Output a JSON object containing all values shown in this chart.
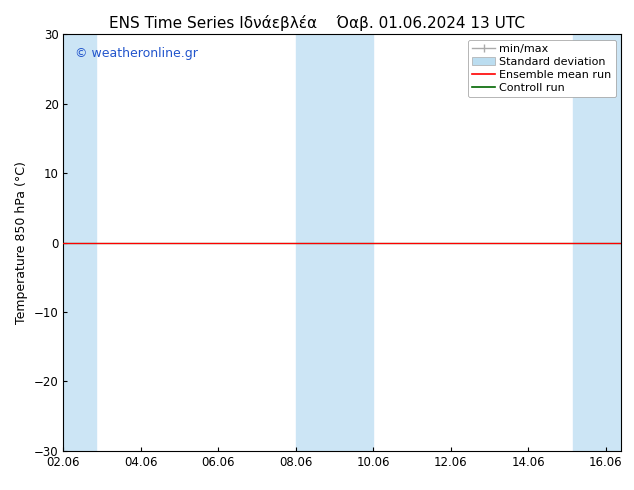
{
  "title_left": "ENS Time Series Ιδνάεβλέα",
  "title_right": "Όαβ. 01.06.2024 13 UTC",
  "ylabel": "Temperature 850 hPa (°C)",
  "watermark": "© weatheronline.gr",
  "watermark_color": "#2255cc",
  "ylim": [
    -30,
    30
  ],
  "yticks": [
    -30,
    -20,
    -10,
    0,
    10,
    20,
    30
  ],
  "xlim_start": 0,
  "xlim_end": 14.4,
  "xtick_labels": [
    "02.06",
    "04.06",
    "06.06",
    "08.06",
    "10.06",
    "12.06",
    "14.06",
    "16.06"
  ],
  "xtick_positions": [
    0,
    2,
    4,
    6,
    8,
    10,
    12,
    14
  ],
  "background_color": "#ffffff",
  "plot_bg_color": "#ffffff",
  "shaded_columns": [
    {
      "x_start": 0.0,
      "x_end": 0.85,
      "color": "#cce5f5"
    },
    {
      "x_start": 6.0,
      "x_end": 8.0,
      "color": "#cce5f5"
    },
    {
      "x_start": 13.15,
      "x_end": 14.4,
      "color": "#cce5f5"
    }
  ],
  "ensemble_mean_color": "#ff0000",
  "control_run_color": "#006600",
  "flat_value": 0.0,
  "legend_labels": [
    "min/max",
    "Standard deviation",
    "Ensemble mean run",
    "Controll run"
  ],
  "minmax_color": "#aaaaaa",
  "stddev_color": "#bbddf0",
  "title_fontsize": 11,
  "axis_fontsize": 9,
  "tick_fontsize": 8.5,
  "legend_fontsize": 8
}
